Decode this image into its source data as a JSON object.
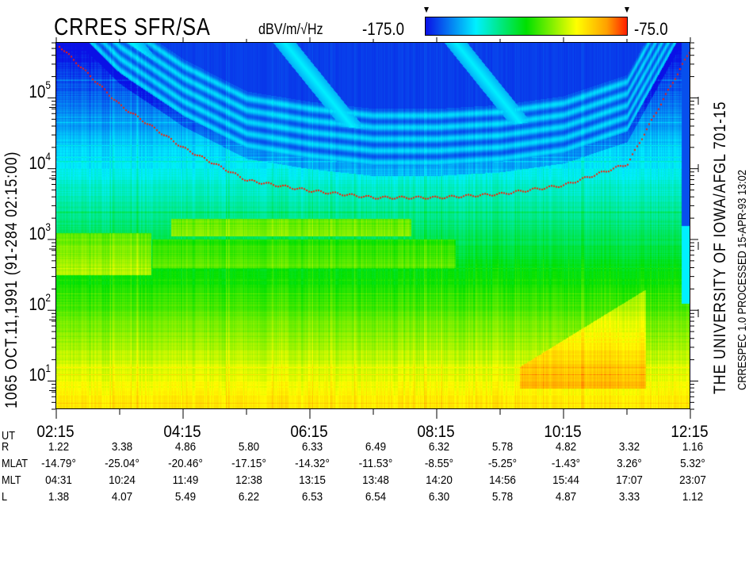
{
  "header": {
    "title": "CRRES SFR/SA",
    "units": "dBV/m/√Hz",
    "colorbar_min_label": "-175.0",
    "colorbar_max_label": "-75.0"
  },
  "left_label": "1065  OCT.11,1991  (91-284  02:15:00)",
  "right_labels": {
    "line1": "THE UNIVERSITY OF IOWA/AFGL 701-15",
    "line2": "CRRESPEC 1.0   PROCESSED 15-APR-93  13:02"
  },
  "colors": {
    "colormap": [
      "#0a10e6",
      "#00f0ff",
      "#00e000",
      "#ffff00",
      "#ffa000",
      "#ff2000"
    ],
    "trace": "#ff1a00",
    "axis": "#000000"
  },
  "chart_data": {
    "type": "heatmap",
    "title": "CRRES SFR/SA",
    "colorbar": {
      "label": "dBV/m/√Hz",
      "min": -175.0,
      "max": -75.0
    },
    "x_range": [
      "02:15",
      "12:15"
    ],
    "x_ticks_major": [
      "02:15",
      "04:15",
      "06:15",
      "08:15",
      "10:15",
      "12:15"
    ],
    "x_minor_step_hours": 1,
    "y_scale": "log",
    "y_range_hz": [
      4,
      600000
    ],
    "y_ticks": [
      {
        "value": 10,
        "base": "10",
        "exp": "1"
      },
      {
        "value": 100,
        "base": "10",
        "exp": "2"
      },
      {
        "value": 1000,
        "base": "10",
        "exp": "3"
      },
      {
        "value": 10000,
        "base": "10",
        "exp": "4"
      },
      {
        "value": 100000,
        "base": "10",
        "exp": "5"
      }
    ],
    "trace_points": [
      {
        "ut": "02:15",
        "hz": 600000
      },
      {
        "ut": "03:15",
        "hz": 80000
      },
      {
        "ut": "04:15",
        "hz": 20000
      },
      {
        "ut": "05:15",
        "hz": 7000
      },
      {
        "ut": "06:15",
        "hz": 5000
      },
      {
        "ut": "07:15",
        "hz": 4000
      },
      {
        "ut": "08:15",
        "hz": 4000
      },
      {
        "ut": "09:15",
        "hz": 4500
      },
      {
        "ut": "10:15",
        "hz": 6000
      },
      {
        "ut": "11:15",
        "hz": 12000
      },
      {
        "ut": "12:15",
        "hz": 500000
      }
    ]
  },
  "ephemeris": {
    "rows": [
      {
        "label": "UT",
        "values": [
          "02:15",
          "",
          "04:15",
          "",
          "06:15",
          "",
          "08:15",
          "",
          "10:15",
          "",
          "12:15"
        ]
      },
      {
        "label": "R",
        "values": [
          "1.22",
          "3.38",
          "4.86",
          "5.80",
          "6.33",
          "6.49",
          "6.32",
          "5.78",
          "4.82",
          "3.32",
          "1.16"
        ]
      },
      {
        "label": "MLAT",
        "values": [
          "-14.79°",
          "-25.04°",
          "-20.46°",
          "-17.15°",
          "-14.32°",
          "-11.53°",
          "-8.55°",
          "-5.25°",
          "-1.43°",
          "3.26°",
          "5.32°"
        ]
      },
      {
        "label": "MLT",
        "values": [
          "04:31",
          "10:24",
          "11:49",
          "12:38",
          "13:15",
          "13:48",
          "14:20",
          "14:56",
          "15:44",
          "17:07",
          "23:07"
        ]
      },
      {
        "label": "L",
        "values": [
          "1.38",
          "4.07",
          "5.49",
          "6.22",
          "6.53",
          "6.54",
          "6.30",
          "5.78",
          "4.87",
          "3.33",
          "1.12"
        ]
      }
    ]
  }
}
